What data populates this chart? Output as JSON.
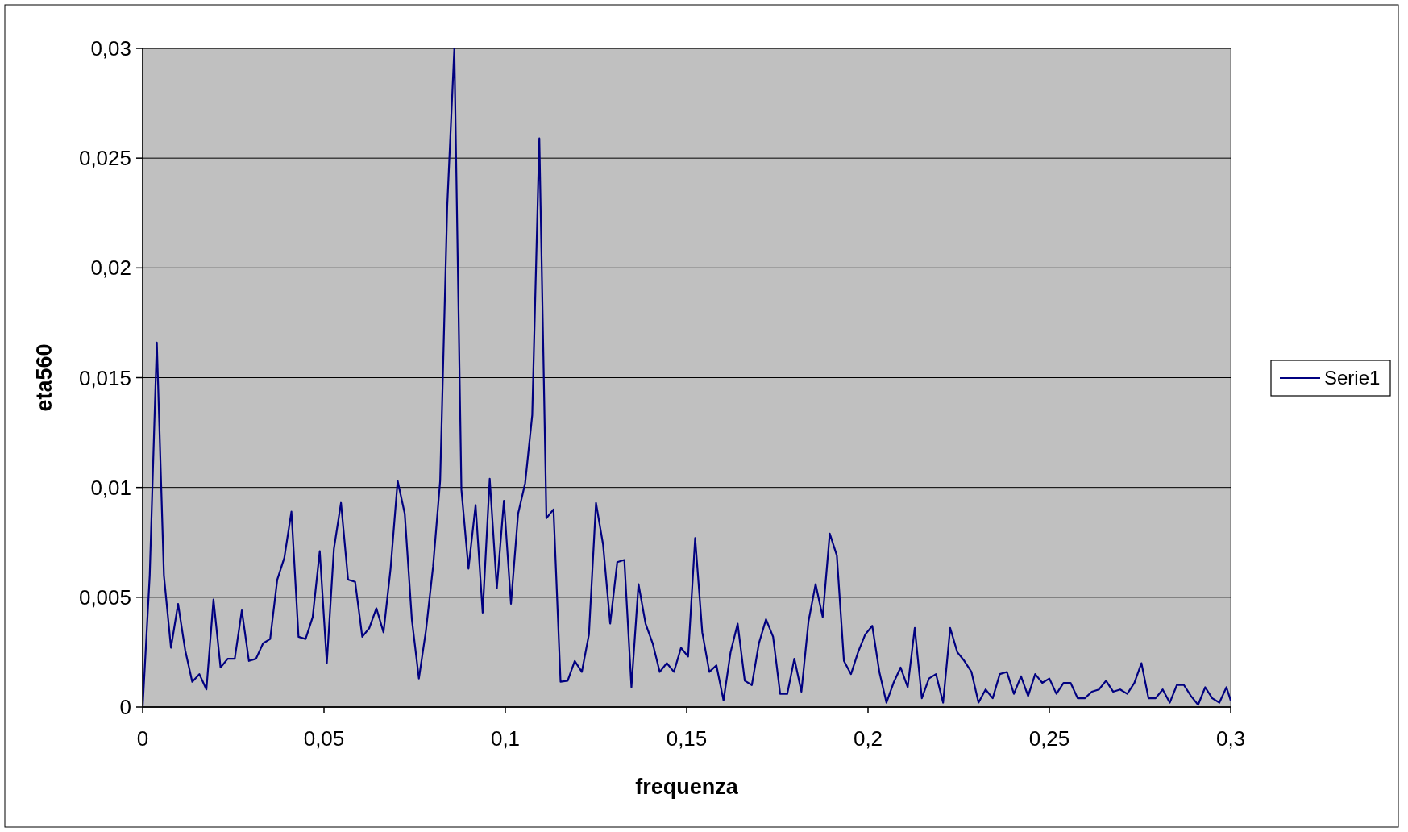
{
  "chart_data": {
    "type": "line",
    "xlabel": "frequenza",
    "ylabel": "eta560",
    "x": [
      0,
      0.00195,
      0.00391,
      0.00586,
      0.00781,
      0.00977,
      0.01172,
      0.01367,
      0.01563,
      0.01758,
      0.01953,
      0.02148,
      0.02344,
      0.02539,
      0.02734,
      0.0293,
      0.03125,
      0.0332,
      0.03516,
      0.03711,
      0.03906,
      0.04102,
      0.04297,
      0.04492,
      0.04688,
      0.04883,
      0.05078,
      0.05273,
      0.05469,
      0.05664,
      0.05859,
      0.06055,
      0.0625,
      0.06445,
      0.06641,
      0.06836,
      0.07031,
      0.07227,
      0.07422,
      0.07617,
      0.07813,
      0.08008,
      0.08203,
      0.08398,
      0.08594,
      0.08789,
      0.08984,
      0.0918,
      0.09375,
      0.0957,
      0.09766,
      0.09961,
      0.10156,
      0.10352,
      0.10547,
      0.10742,
      0.10938,
      0.11133,
      0.11328,
      0.11523,
      0.11719,
      0.11914,
      0.12109,
      0.12305,
      0.125,
      0.12695,
      0.12891,
      0.13086,
      0.13281,
      0.13477,
      0.13672,
      0.13867,
      0.14063,
      0.14258,
      0.14453,
      0.14648,
      0.14844,
      0.15039,
      0.15234,
      0.1543,
      0.15625,
      0.1582,
      0.16016,
      0.16211,
      0.16406,
      0.16602,
      0.16797,
      0.16992,
      0.17188,
      0.17383,
      0.17578,
      0.17773,
      0.17969,
      0.18164,
      0.18359,
      0.18555,
      0.1875,
      0.18945,
      0.19141,
      0.19336,
      0.19531,
      0.19727,
      0.19922,
      0.20117,
      0.20313,
      0.20508,
      0.20703,
      0.20898,
      0.21094,
      0.21289,
      0.21484,
      0.2168,
      0.21875,
      0.2207,
      0.22266,
      0.22461,
      0.22656,
      0.22852,
      0.23047,
      0.23242,
      0.23438,
      0.23633,
      0.23828,
      0.24023,
      0.24219,
      0.24414,
      0.24609,
      0.24805,
      0.25,
      0.25195,
      0.25391,
      0.25586,
      0.25781,
      0.25977,
      0.26172,
      0.26367,
      0.26563,
      0.26758,
      0.26953,
      0.27148,
      0.27344,
      0.27539,
      0.27734,
      0.2793,
      0.28125,
      0.2832,
      0.28516,
      0.28711,
      0.28906,
      0.29102,
      0.29297,
      0.29492,
      0.29688,
      0.29883,
      0.3
    ],
    "series": [
      {
        "name": "Serie1",
        "color": "#000080",
        "values": [
          0,
          0.006,
          0.0166,
          0.006,
          0.0027,
          0.0047,
          0.0026,
          0.00115,
          0.0015,
          0.0008,
          0.0049,
          0.0018,
          0.0022,
          0.0022,
          0.0044,
          0.0021,
          0.0022,
          0.0029,
          0.0031,
          0.0058,
          0.0068,
          0.0089,
          0.0032,
          0.0031,
          0.0041,
          0.0071,
          0.002,
          0.0072,
          0.0093,
          0.0058,
          0.0057,
          0.0032,
          0.0036,
          0.0045,
          0.0034,
          0.0063,
          0.0103,
          0.0088,
          0.004,
          0.0013,
          0.0035,
          0.0064,
          0.0103,
          0.0228,
          0.03,
          0.0099,
          0.0063,
          0.0092,
          0.0043,
          0.0104,
          0.0054,
          0.0094,
          0.0047,
          0.0088,
          0.0102,
          0.0133,
          0.0259,
          0.0086,
          0.009,
          0.00115,
          0.0012,
          0.0021,
          0.0016,
          0.0033,
          0.0093,
          0.0074,
          0.0038,
          0.0066,
          0.0067,
          0.0009,
          0.0056,
          0.0038,
          0.0029,
          0.0016,
          0.002,
          0.0016,
          0.0027,
          0.0023,
          0.0077,
          0.0034,
          0.0016,
          0.0019,
          0.0003,
          0.0025,
          0.0038,
          0.0012,
          0.001,
          0.0029,
          0.004,
          0.0032,
          0.0006,
          0.0006,
          0.0022,
          0.0007,
          0.0039,
          0.0056,
          0.0041,
          0.0079,
          0.0069,
          0.0021,
          0.0015,
          0.0025,
          0.0033,
          0.0037,
          0.0016,
          0.0002,
          0.0011,
          0.0018,
          0.0009,
          0.0036,
          0.0004,
          0.0013,
          0.0015,
          0.0002,
          0.0036,
          0.0025,
          0.0021,
          0.0016,
          0.0002,
          0.0008,
          0.0004,
          0.0015,
          0.0016,
          0.0006,
          0.0014,
          0.0005,
          0.0015,
          0.0011,
          0.0013,
          0.0006,
          0.0011,
          0.0011,
          0.0004,
          0.0004,
          0.0007,
          0.0008,
          0.0012,
          0.0007,
          0.0008,
          0.0006,
          0.0011,
          0.002,
          0.0004,
          0.0004,
          0.0008,
          0.0002,
          0.001,
          0.001,
          0.0005,
          0.0001,
          0.0009,
          0.0004,
          0.0002,
          0.0009,
          0.0003
        ]
      }
    ],
    "xlim": [
      0,
      0.3
    ],
    "xticks": [
      0,
      {
        "value": 0.05,
        "label": "0,05"
      },
      {
        "value": 0.1,
        "label": "0,1"
      },
      {
        "value": 0.15,
        "label": "0,15"
      },
      {
        "value": 0.2,
        "label": "0,2"
      },
      {
        "value": 0.25,
        "label": "0,25"
      },
      {
        "value": 0.3,
        "label": "0,3"
      }
    ],
    "ylim": [
      0,
      0.03
    ],
    "yticks": [
      0,
      {
        "value": 0.005,
        "label": "0,005"
      },
      {
        "value": 0.01,
        "label": "0,01"
      },
      {
        "value": 0.015,
        "label": "0,015"
      },
      {
        "value": 0.02,
        "label": "0,02"
      },
      {
        "value": 0.025,
        "label": "0,025"
      },
      {
        "value": 0.03,
        "label": "0,03"
      }
    ],
    "grid": "y",
    "legend": "right",
    "marker": "none",
    "line_style": "solid"
  }
}
